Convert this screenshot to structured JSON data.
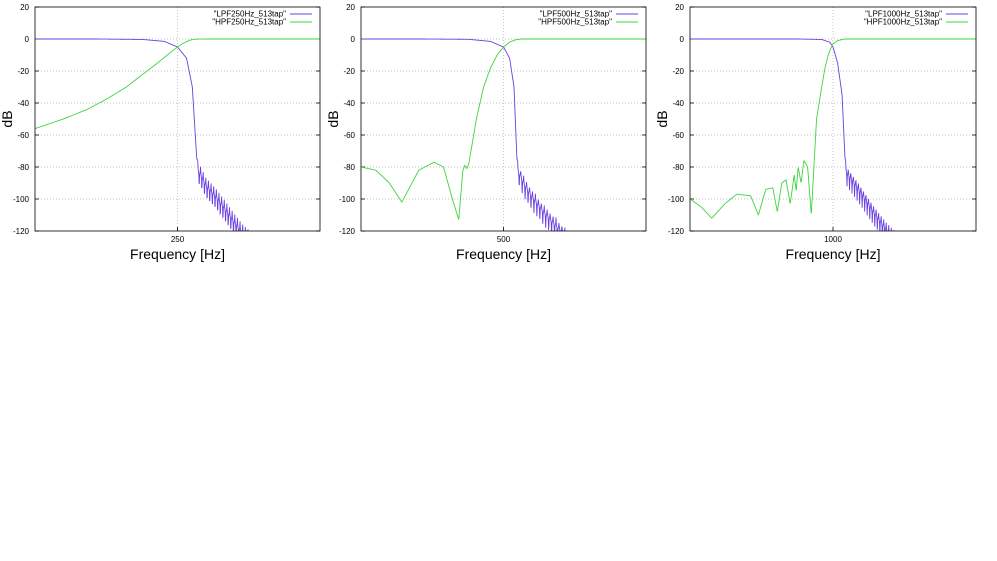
{
  "chart_data": [
    {
      "type": "line",
      "xlabel": "Frequency [Hz]",
      "ylabel": "dB",
      "xscale": "log",
      "xlim": [
        100,
        625
      ],
      "ylim": [
        -120,
        20
      ],
      "yticks": [
        20,
        0,
        -20,
        -40,
        -60,
        -80,
        -100,
        -120
      ],
      "xticks": [
        250
      ],
      "grid": true,
      "legend_position": "top-right",
      "series": [
        {
          "name": "\"LPF250Hz_513tap\"",
          "color": "#6a3fe0",
          "x": [
            100,
            150,
            200,
            230,
            250,
            265,
            275,
            283,
            290,
            300,
            320,
            340,
            360,
            380,
            400
          ],
          "y": [
            0,
            0,
            -0.3,
            -1.5,
            -5,
            -12,
            -30,
            -75,
            -78,
            -85,
            -92,
            -100,
            -108,
            -115,
            -120
          ],
          "ripple": {
            "from": 285,
            "to": 400,
            "count": 20,
            "depth": 15
          }
        },
        {
          "name": "\"HPF250Hz_513tap\"",
          "color": "#3ed43e",
          "x": [
            100,
            120,
            140,
            160,
            180,
            200,
            220,
            240,
            250,
            260,
            270,
            280,
            300,
            400,
            625
          ],
          "y": [
            -56,
            -50,
            -44,
            -37,
            -30,
            -22,
            -15,
            -8,
            -5,
            -2.5,
            -0.8,
            -0.1,
            0,
            0,
            0
          ]
        }
      ]
    },
    {
      "type": "line",
      "xlabel": "Frequency [Hz]",
      "ylabel": "dB",
      "xscale": "log",
      "xlim": [
        200,
        1250
      ],
      "ylim": [
        -120,
        20
      ],
      "yticks": [
        20,
        0,
        -20,
        -40,
        -60,
        -80,
        -100,
        -120
      ],
      "xticks": [
        500
      ],
      "grid": true,
      "legend_position": "top-right",
      "series": [
        {
          "name": "\"LPF500Hz_513tap\"",
          "color": "#6a3fe0",
          "x": [
            200,
            300,
            400,
            460,
            500,
            520,
            535,
            545,
            555,
            570,
            600,
            650,
            700,
            760,
            800
          ],
          "y": [
            0,
            0,
            -0.2,
            -1.5,
            -5,
            -12,
            -30,
            -75,
            -78,
            -84,
            -92,
            -102,
            -110,
            -118,
            -120
          ],
          "ripple": {
            "from": 548,
            "to": 800,
            "count": 20,
            "depth": 15
          }
        },
        {
          "name": "\"HPF500Hz_513tap\"",
          "color": "#3ed43e",
          "x": [
            200,
            220,
            240,
            260,
            290,
            320,
            340,
            360,
            375,
            385,
            390,
            395,
            400,
            420,
            440,
            460,
            480,
            500,
            520,
            540,
            560,
            1250
          ],
          "y": [
            -80,
            -82,
            -90,
            -102,
            -82,
            -77,
            -80,
            -100,
            -113,
            -82,
            -79,
            -81,
            -78,
            -50,
            -30,
            -18,
            -10,
            -5,
            -2,
            -0.5,
            0,
            0
          ]
        }
      ]
    },
    {
      "type": "line",
      "xlabel": "Frequency [Hz]",
      "ylabel": "dB",
      "xscale": "log",
      "xlim": [
        400,
        2500
      ],
      "ylim": [
        -120,
        20
      ],
      "yticks": [
        20,
        0,
        -20,
        -40,
        -60,
        -80,
        -100,
        -120
      ],
      "xticks": [
        1000
      ],
      "grid": true,
      "legend_position": "top-right",
      "series": [
        {
          "name": "\"LPF1000Hz_513tap\"",
          "color": "#6a3fe0",
          "x": [
            400,
            800,
            930,
            980,
            1000,
            1030,
            1060,
            1080,
            1100,
            1150,
            1200,
            1300,
            1400,
            1500
          ],
          "y": [
            0,
            0,
            -0.3,
            -2,
            -5,
            -15,
            -35,
            -75,
            -78,
            -84,
            -90,
            -102,
            -112,
            -120
          ],
          "ripple": {
            "from": 1085,
            "to": 1500,
            "count": 20,
            "depth": 15
          }
        },
        {
          "name": "\"HPF1000Hz_513tap\"",
          "color": "#3ed43e",
          "x": [
            400,
            430,
            460,
            500,
            540,
            590,
            620,
            650,
            680,
            700,
            720,
            740,
            760,
            780,
            790,
            800,
            815,
            830,
            850,
            870,
            900,
            930,
            950,
            970,
            985,
            1000,
            1030,
            1080,
            2500
          ],
          "y": [
            -100,
            -105,
            -112,
            -103,
            -97,
            -98,
            -110,
            -94,
            -93,
            -108,
            -90,
            -88,
            -103,
            -85,
            -95,
            -80,
            -90,
            -76,
            -80,
            -110,
            -50,
            -30,
            -18,
            -10,
            -6,
            -3,
            -1,
            0,
            0
          ]
        }
      ]
    }
  ]
}
